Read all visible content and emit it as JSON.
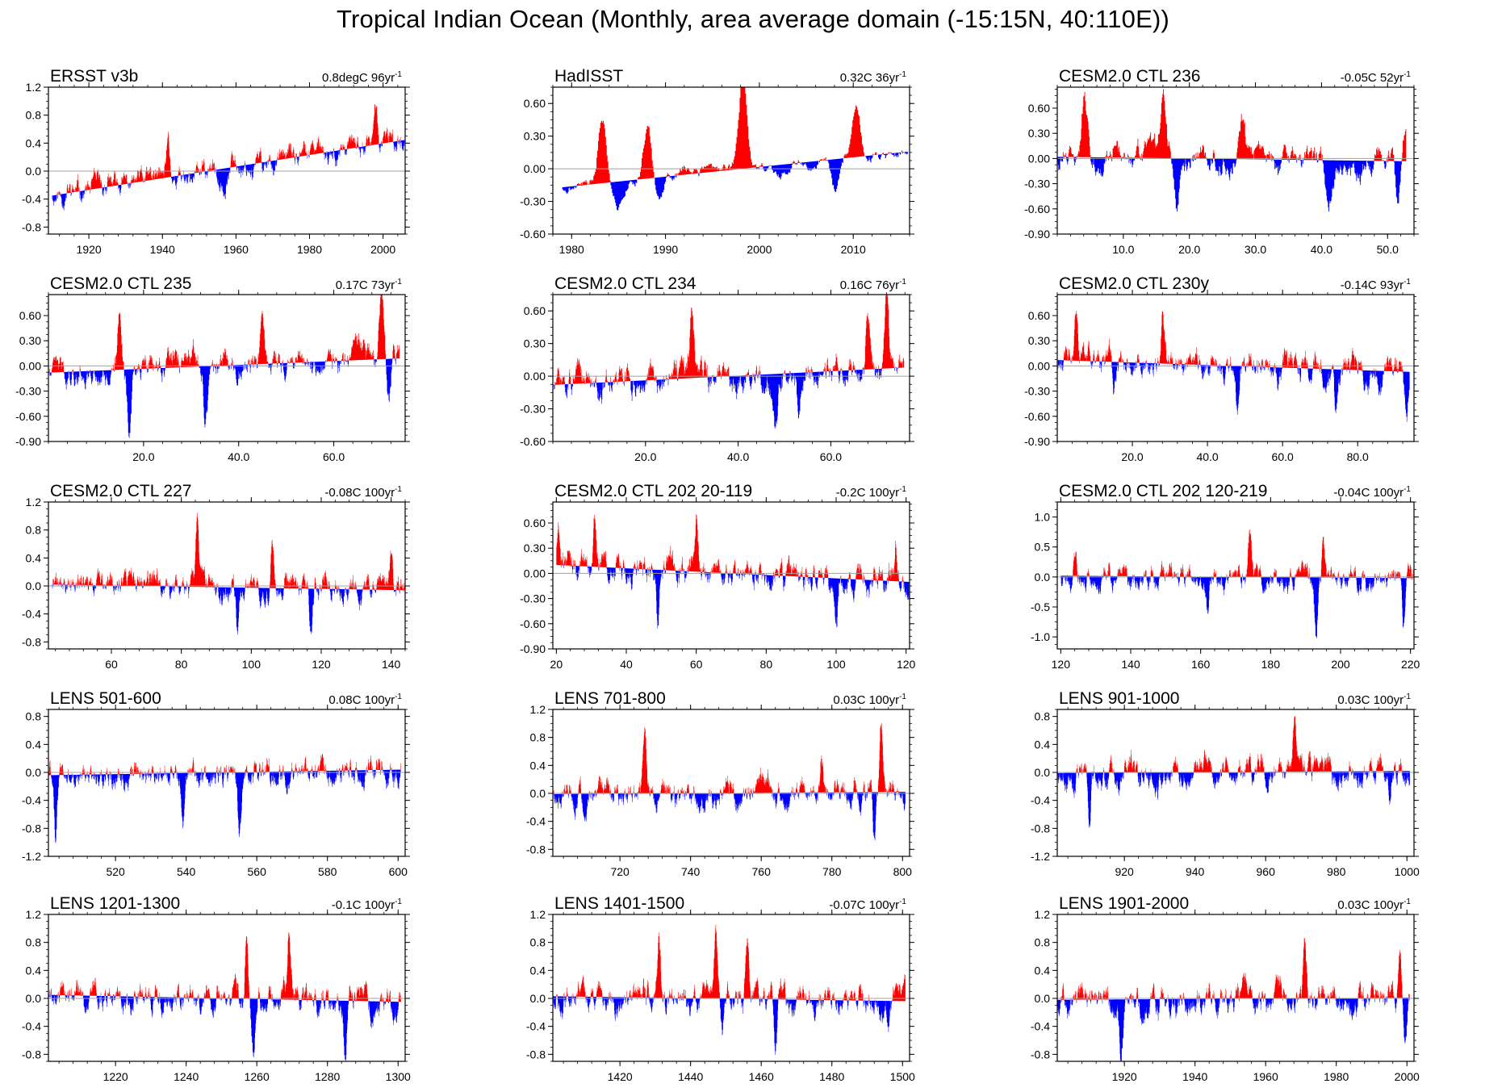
{
  "title": "Tropical Indian Ocean (Monthly, area average domain (-15:15N, 40:110E))",
  "colors": {
    "positive": "#ff0000",
    "negative": "#0000ff",
    "zero_line": "#a0a0a0",
    "frame": "#000000"
  },
  "chart_data": [
    {
      "type": "bar",
      "title": "ERSST v3b",
      "trend_value": "0.8degC 96yr",
      "trend_sup": "-1",
      "xlim": [
        1909,
        2006
      ],
      "ylim": [
        -0.9,
        1.2
      ],
      "xticks": [
        1920,
        1940,
        1960,
        1980,
        2000
      ],
      "xtick_labels": [
        "1920",
        "1940",
        "1960",
        "1980",
        "2000"
      ],
      "yticks": [
        -0.8,
        -0.4,
        0,
        0.4,
        0.8,
        1.2
      ],
      "ytick_labels": [
        "-0.8",
        "-0.4",
        "0.0",
        "0.4",
        "0.8",
        "1.2"
      ],
      "trend": {
        "x0": 1910,
        "y0": -0.35,
        "slope": 0.0083
      },
      "noise": 0.17,
      "seed": 11,
      "months": 1152,
      "events": [
        [
          1941.5,
          0.6
        ],
        [
          1957,
          -0.3
        ],
        [
          1983,
          0.25
        ],
        [
          1998,
          0.55
        ],
        [
          2010,
          0.25
        ]
      ]
    },
    {
      "type": "bar",
      "title": "HadISST",
      "trend_value": "0.32C 36yr",
      "trend_sup": "-1",
      "xlim": [
        1978,
        2016
      ],
      "ylim": [
        -0.6,
        0.75
      ],
      "xticks": [
        1980,
        1990,
        2000,
        2010
      ],
      "xtick_labels": [
        "1980",
        "1990",
        "2000",
        "2010"
      ],
      "yticks": [
        -0.6,
        -0.3,
        0,
        0.3,
        0.6
      ],
      "ytick_labels": [
        "-0.60",
        "-0.30",
        "0.00",
        "0.30",
        "0.60"
      ],
      "trend": {
        "x0": 1979,
        "y0": -0.17,
        "slope": 0.0089
      },
      "noise": 0.06,
      "seed": 21,
      "months": 444,
      "events": [
        [
          1983.2,
          0.6
        ],
        [
          1985,
          -0.2
        ],
        [
          1988,
          0.5
        ],
        [
          1989.3,
          -0.25
        ],
        [
          1992,
          0.1
        ],
        [
          1998.2,
          0.85
        ],
        [
          2002,
          -0.1
        ],
        [
          2010.3,
          0.45
        ],
        [
          2008,
          -0.3
        ]
      ]
    },
    {
      "type": "bar",
      "title": "CESM2.0 CTL 236",
      "trend_value": "-0.05C 52yr",
      "trend_sup": "-1",
      "xlim": [
        0,
        54
      ],
      "ylim": [
        -0.9,
        0.85
      ],
      "xticks": [
        10,
        20,
        30,
        40,
        50
      ],
      "xtick_labels": [
        "10.0",
        "20.0",
        "30.0",
        "40.0",
        "50.0"
      ],
      "yticks": [
        -0.9,
        -0.6,
        -0.3,
        0,
        0.3,
        0.6
      ],
      "ytick_labels": [
        "-0.90",
        "-0.60",
        "-0.30",
        "0.00",
        "0.30",
        "0.60"
      ],
      "trend": {
        "x0": 0,
        "y0": 0.02,
        "slope": -0.001
      },
      "noise": 0.18,
      "seed": 31,
      "months": 630,
      "events": [
        [
          4,
          0.7
        ],
        [
          18,
          -0.7
        ],
        [
          16,
          0.55
        ],
        [
          28,
          0.5
        ],
        [
          41,
          -0.4
        ],
        [
          52.5,
          0.45
        ],
        [
          51.5,
          -0.6
        ]
      ]
    },
    {
      "type": "bar",
      "title": "CESM2.0 CTL 235",
      "trend_value": "0.17C 73yr",
      "trend_sup": "-1",
      "xlim": [
        0,
        75
      ],
      "ylim": [
        -0.9,
        0.85
      ],
      "xticks": [
        20,
        40,
        60
      ],
      "xtick_labels": [
        "20.0",
        "40.0",
        "60.0"
      ],
      "yticks": [
        -0.9,
        -0.6,
        -0.3,
        0,
        0.3,
        0.6
      ],
      "ytick_labels": [
        "-0.90",
        "-0.60",
        "-0.30",
        "0.00",
        "0.30",
        "0.60"
      ],
      "trend": {
        "x0": 0,
        "y0": -0.08,
        "slope": 0.0023
      },
      "noise": 0.17,
      "seed": 41,
      "months": 876,
      "events": [
        [
          15,
          0.6
        ],
        [
          17,
          -0.65
        ],
        [
          33,
          -0.65
        ],
        [
          45,
          0.45
        ],
        [
          70,
          0.75
        ],
        [
          71.5,
          -0.6
        ]
      ]
    },
    {
      "type": "bar",
      "title": "CESM2.0 CTL 234",
      "trend_value": "0.16C 76yr",
      "trend_sup": "-1",
      "xlim": [
        0,
        77
      ],
      "ylim": [
        -0.6,
        0.75
      ],
      "xticks": [
        20,
        40,
        60
      ],
      "xtick_labels": [
        "20.0",
        "40.0",
        "60.0"
      ],
      "yticks": [
        -0.6,
        -0.3,
        0,
        0.3,
        0.6
      ],
      "ytick_labels": [
        "-0.60",
        "-0.30",
        "0.00",
        "0.30",
        "0.60"
      ],
      "trend": {
        "x0": 0,
        "y0": -0.08,
        "slope": 0.0021
      },
      "noise": 0.15,
      "seed": 51,
      "months": 912,
      "events": [
        [
          30,
          0.55
        ],
        [
          48,
          -0.45
        ],
        [
          53,
          -0.4
        ],
        [
          68,
          0.55
        ],
        [
          72,
          0.6
        ]
      ]
    },
    {
      "type": "bar",
      "title": "CESM2.0 CTL 230y",
      "trend_value": "-0.14C 93yr",
      "trend_sup": "-1",
      "xlim": [
        0,
        95
      ],
      "ylim": [
        -0.9,
        0.85
      ],
      "xticks": [
        20,
        40,
        60,
        80
      ],
      "xtick_labels": [
        "20.0",
        "40.0",
        "60.0",
        "80.0"
      ],
      "yticks": [
        -0.9,
        -0.6,
        -0.3,
        0,
        0.3,
        0.6
      ],
      "ytick_labels": [
        "-0.90",
        "-0.60",
        "-0.30",
        "0.00",
        "0.30",
        "0.60"
      ],
      "trend": {
        "x0": 0,
        "y0": 0.07,
        "slope": -0.0015
      },
      "noise": 0.17,
      "seed": 61,
      "months": 1116,
      "events": [
        [
          5,
          0.55
        ],
        [
          15,
          -0.55
        ],
        [
          28,
          0.55
        ],
        [
          48,
          -0.5
        ],
        [
          74,
          -0.45
        ],
        [
          93,
          -0.55
        ]
      ]
    },
    {
      "type": "bar",
      "title": "CESM2.0 CTL 227",
      "trend_value": "-0.08C 100yr",
      "trend_sup": "-1",
      "xlim": [
        42,
        144
      ],
      "ylim": [
        -0.9,
        1.2
      ],
      "xticks": [
        60,
        80,
        100,
        120,
        140
      ],
      "xtick_labels": [
        "60",
        "80",
        "100",
        "120",
        "140"
      ],
      "yticks": [
        -0.8,
        -0.4,
        0,
        0.4,
        0.8,
        1.2
      ],
      "ytick_labels": [
        "-0.8",
        "-0.4",
        "0.0",
        "0.4",
        "0.8",
        "1.2"
      ],
      "trend": {
        "x0": 43,
        "y0": 0.02,
        "slope": -0.0008
      },
      "noise": 0.18,
      "seed": 71,
      "months": 1200,
      "events": [
        [
          84.5,
          0.95
        ],
        [
          96,
          -0.55
        ],
        [
          106,
          0.65
        ],
        [
          117,
          -0.8
        ],
        [
          140,
          0.6
        ]
      ]
    },
    {
      "type": "bar",
      "title": "CESM2.0 CTL 202 20-119",
      "trend_value": "-0.2C 100yr",
      "trend_sup": "-1",
      "xlim": [
        19,
        121
      ],
      "ylim": [
        -0.9,
        0.85
      ],
      "xticks": [
        20,
        40,
        60,
        80,
        100,
        120
      ],
      "xtick_labels": [
        "20",
        "40",
        "60",
        "80",
        "100",
        "120"
      ],
      "yticks": [
        -0.9,
        -0.6,
        -0.3,
        0,
        0.3,
        0.6
      ],
      "ytick_labels": [
        "-0.90",
        "-0.60",
        "-0.30",
        "0.00",
        "0.30",
        "0.60"
      ],
      "trend": {
        "x0": 20,
        "y0": 0.1,
        "slope": -0.002
      },
      "noise": 0.18,
      "seed": 81,
      "months": 1200,
      "events": [
        [
          20.5,
          0.5
        ],
        [
          31,
          0.6
        ],
        [
          49,
          -0.7
        ],
        [
          60,
          0.65
        ],
        [
          100,
          -0.6
        ],
        [
          117,
          0.45
        ]
      ]
    },
    {
      "type": "bar",
      "title": "CESM2.0 CTL 202 120-219",
      "trend_value": "-0.04C 100yr",
      "trend_sup": "-1",
      "xlim": [
        119,
        221
      ],
      "ylim": [
        -1.2,
        1.25
      ],
      "xticks": [
        120,
        140,
        160,
        180,
        200,
        220
      ],
      "xtick_labels": [
        "120",
        "140",
        "160",
        "180",
        "200",
        "220"
      ],
      "yticks": [
        -1,
        -0.5,
        0,
        0.5,
        1
      ],
      "ytick_labels": [
        "-1.0",
        "-0.5",
        "0.0",
        "0.5",
        "1.0"
      ],
      "trend": {
        "x0": 120,
        "y0": 0.02,
        "slope": -0.0004
      },
      "noise": 0.2,
      "seed": 91,
      "months": 1200,
      "events": [
        [
          124,
          0.55
        ],
        [
          162,
          -0.6
        ],
        [
          174,
          0.7
        ],
        [
          193,
          -0.95
        ],
        [
          195,
          0.55
        ],
        [
          218,
          -0.9
        ]
      ]
    },
    {
      "type": "bar",
      "title": "LENS 501-600",
      "trend_value": "0.08C 100yr",
      "trend_sup": "-1",
      "xlim": [
        501,
        602
      ],
      "ylim": [
        -1.2,
        0.9
      ],
      "xticks": [
        520,
        540,
        560,
        580,
        600
      ],
      "xtick_labels": [
        "520",
        "540",
        "560",
        "580",
        "600"
      ],
      "yticks": [
        -1.2,
        -0.8,
        -0.4,
        0,
        0.4,
        0.8
      ],
      "ytick_labels": [
        "-1.2",
        "-0.8",
        "-0.4",
        "0.0",
        "0.4",
        "0.8"
      ],
      "trend": {
        "x0": 501,
        "y0": -0.04,
        "slope": 0.0008
      },
      "noise": 0.2,
      "seed": 101,
      "months": 1200,
      "events": [
        [
          503,
          -0.7
        ],
        [
          539,
          -0.85
        ],
        [
          555,
          -0.85
        ],
        [
          601,
          0.35
        ]
      ]
    },
    {
      "type": "bar",
      "title": "LENS 701-800",
      "trend_value": "0.03C 100yr",
      "trend_sup": "-1",
      "xlim": [
        701,
        802
      ],
      "ylim": [
        -0.9,
        1.2
      ],
      "xticks": [
        720,
        740,
        760,
        780,
        800
      ],
      "xtick_labels": [
        "720",
        "740",
        "760",
        "780",
        "800"
      ],
      "yticks": [
        -0.8,
        -0.4,
        0,
        0.4,
        0.8,
        1.2
      ],
      "ytick_labels": [
        "-0.8",
        "-0.4",
        "0.0",
        "0.4",
        "0.8",
        "1.2"
      ],
      "trend": {
        "x0": 701,
        "y0": -0.01,
        "slope": 0.0003
      },
      "noise": 0.2,
      "seed": 111,
      "months": 1200,
      "events": [
        [
          727,
          0.8
        ],
        [
          777,
          0.5
        ],
        [
          792,
          -0.75
        ],
        [
          794,
          1.05
        ]
      ]
    },
    {
      "type": "bar",
      "title": "LENS 901-1000",
      "trend_value": "0.03C 100yr",
      "trend_sup": "-1",
      "xlim": [
        901,
        1002
      ],
      "ylim": [
        -1.2,
        0.9
      ],
      "xticks": [
        920,
        940,
        960,
        980,
        1000
      ],
      "xtick_labels": [
        "920",
        "940",
        "960",
        "980",
        "1000"
      ],
      "yticks": [
        -1.2,
        -0.8,
        -0.4,
        0,
        0.4,
        0.8
      ],
      "ytick_labels": [
        "-1.2",
        "-0.8",
        "-0.4",
        "0.0",
        "0.4",
        "0.8"
      ],
      "trend": {
        "x0": 901,
        "y0": -0.01,
        "slope": 0.0003
      },
      "noise": 0.19,
      "seed": 121,
      "months": 1200,
      "events": [
        [
          910,
          -0.85
        ],
        [
          968,
          0.75
        ],
        [
          995,
          -0.5
        ]
      ]
    },
    {
      "type": "bar",
      "title": "LENS 1201-1300",
      "trend_value": "-0.1C 100yr",
      "trend_sup": "-1",
      "xlim": [
        1201,
        1302
      ],
      "ylim": [
        -0.9,
        1.2
      ],
      "xticks": [
        1220,
        1240,
        1260,
        1280,
        1300
      ],
      "xtick_labels": [
        "1220",
        "1240",
        "1260",
        "1280",
        "1300"
      ],
      "yticks": [
        -0.8,
        -0.4,
        0,
        0.4,
        0.8,
        1.2
      ],
      "ytick_labels": [
        "-0.8",
        "-0.4",
        "0.0",
        "0.4",
        "0.8",
        "1.2"
      ],
      "trend": {
        "x0": 1201,
        "y0": 0.05,
        "slope": -0.001
      },
      "noise": 0.2,
      "seed": 131,
      "months": 1200,
      "events": [
        [
          1257,
          0.85
        ],
        [
          1259,
          -0.7
        ],
        [
          1269,
          0.85
        ],
        [
          1285,
          -0.7
        ]
      ]
    },
    {
      "type": "bar",
      "title": "LENS 1401-1500",
      "trend_value": "-0.07C 100yr",
      "trend_sup": "-1",
      "xlim": [
        1401,
        1502
      ],
      "ylim": [
        -0.9,
        1.2
      ],
      "xticks": [
        1420,
        1440,
        1460,
        1480,
        1500
      ],
      "xtick_labels": [
        "1420",
        "1440",
        "1460",
        "1480",
        "1500"
      ],
      "yticks": [
        -0.8,
        -0.4,
        0,
        0.4,
        0.8,
        1.2
      ],
      "ytick_labels": [
        "-0.8",
        "-0.4",
        "0.0",
        "0.4",
        "0.8",
        "1.2"
      ],
      "trend": {
        "x0": 1401,
        "y0": 0.03,
        "slope": -0.0007
      },
      "noise": 0.2,
      "seed": 141,
      "months": 1200,
      "events": [
        [
          1431,
          0.75
        ],
        [
          1447,
          0.9
        ],
        [
          1449,
          -0.7
        ],
        [
          1456,
          0.7
        ],
        [
          1464,
          -0.75
        ]
      ]
    },
    {
      "type": "bar",
      "title": "LENS 1901-2000",
      "trend_value": "0.03C 100yr",
      "trend_sup": "-1",
      "xlim": [
        1901,
        2002
      ],
      "ylim": [
        -0.9,
        1.2
      ],
      "xticks": [
        1920,
        1940,
        1960,
        1980,
        2000
      ],
      "xtick_labels": [
        "1920",
        "1940",
        "1960",
        "1980",
        "2000"
      ],
      "yticks": [
        -0.8,
        -0.4,
        0,
        0.4,
        0.8,
        1.2
      ],
      "ytick_labels": [
        "-0.8",
        "-0.4",
        "0.0",
        "0.4",
        "0.8",
        "1.2"
      ],
      "trend": {
        "x0": 1901,
        "y0": -0.02,
        "slope": 0.0003
      },
      "noise": 0.2,
      "seed": 151,
      "months": 1200,
      "events": [
        [
          1919,
          -0.7
        ],
        [
          1971,
          0.95
        ],
        [
          1998,
          0.85
        ],
        [
          1999.5,
          -0.65
        ]
      ]
    }
  ]
}
